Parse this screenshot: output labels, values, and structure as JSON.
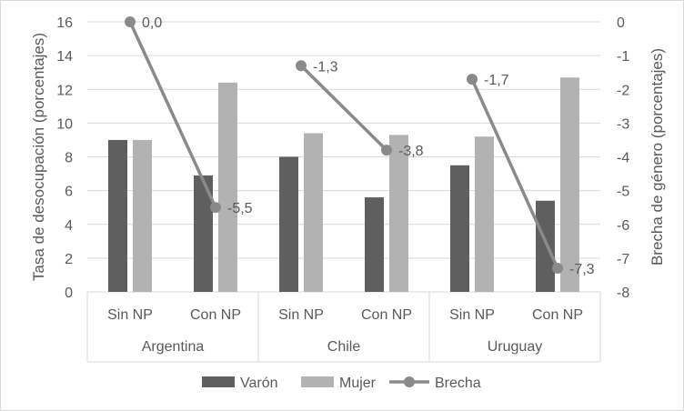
{
  "chart_data": {
    "type": "bar",
    "title": "",
    "groups": [
      "Argentina",
      "Chile",
      "Uruguay"
    ],
    "categories": [
      "Sin NP",
      "Con NP",
      "Sin NP",
      "Con NP",
      "Sin NP",
      "Con NP"
    ],
    "ylabel": "Tasa de desocupación (porcentajes)",
    "ylabel_right": "Brecha de género (porcentajes)",
    "ylim": [
      0,
      16
    ],
    "yticks": [
      0,
      2,
      4,
      6,
      8,
      10,
      12,
      14,
      16
    ],
    "ylim_right": [
      -8,
      0
    ],
    "yticks_right": [
      0,
      -1,
      -2,
      -3,
      -4,
      -5,
      -6,
      -7,
      -8
    ],
    "grid": true,
    "legend_position": "bottom",
    "series": [
      {
        "name": "Varón",
        "type": "bar",
        "axis": "left",
        "color": "#5f5f5f",
        "values": [
          9.0,
          6.9,
          8.0,
          5.6,
          7.5,
          5.4
        ]
      },
      {
        "name": "Mujer",
        "type": "bar",
        "axis": "left",
        "color": "#b2b2b2",
        "values": [
          9.0,
          12.4,
          9.4,
          9.3,
          9.2,
          12.7
        ]
      },
      {
        "name": "Brecha",
        "type": "line",
        "axis": "right",
        "color": "#8a8a8a",
        "values": [
          0.0,
          -5.5,
          -1.3,
          -3.8,
          -1.7,
          -7.3
        ],
        "labels": [
          "0,0",
          "-5,5",
          "-1,3",
          "-3,8",
          "-1,7",
          "-7,3"
        ]
      }
    ]
  }
}
